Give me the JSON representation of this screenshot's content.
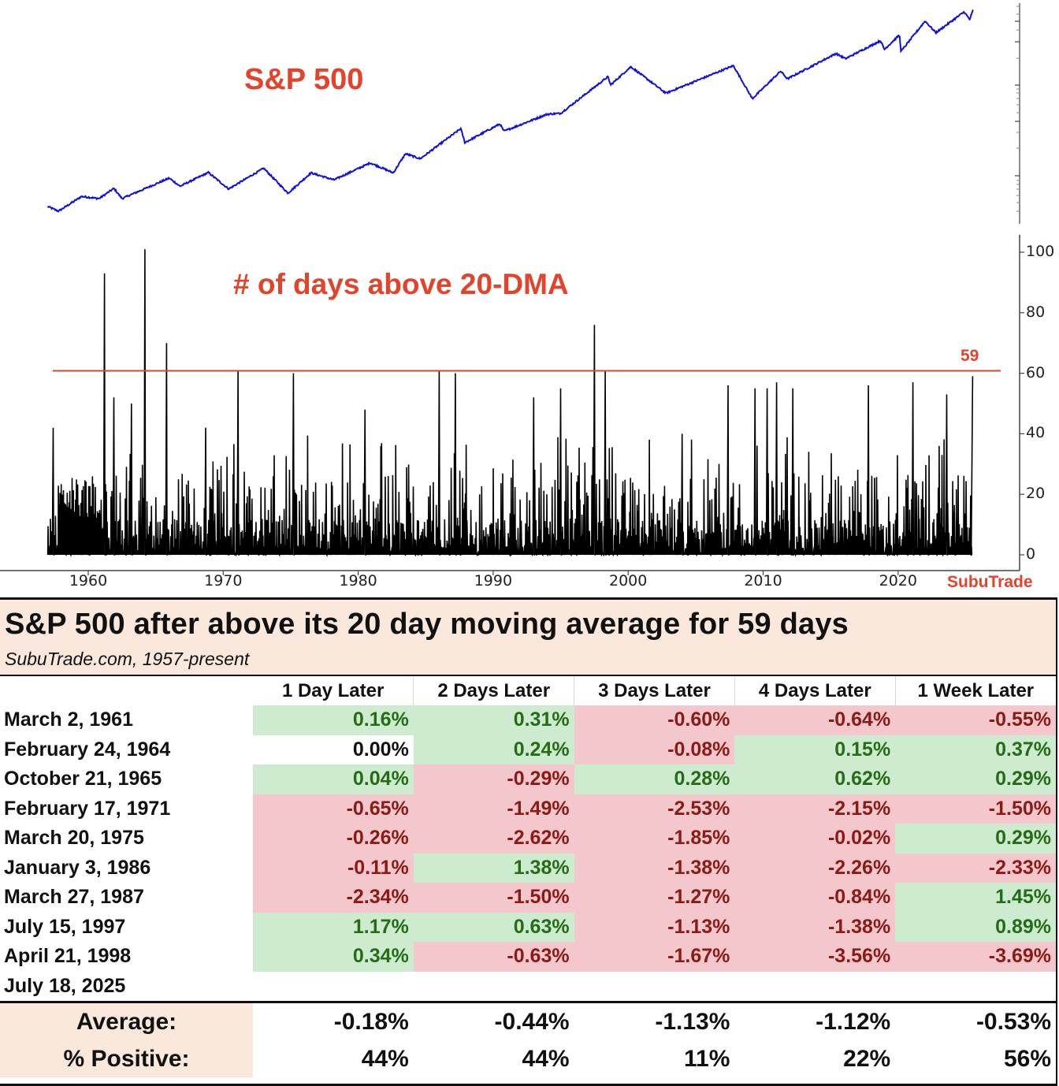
{
  "chart_data": [
    {
      "type": "line",
      "title": "S&P 500",
      "series": [
        {
          "name": "S&P 500",
          "color": "#1010d8"
        }
      ],
      "y_scale": "log",
      "x_range": [
        1957,
        2025.55
      ],
      "key_points": [
        {
          "x": 1957.0,
          "y": 45
        },
        {
          "x": 1957.8,
          "y": 40
        },
        {
          "x": 1959.5,
          "y": 58
        },
        {
          "x": 1960.8,
          "y": 55
        },
        {
          "x": 1961.9,
          "y": 71
        },
        {
          "x": 1962.5,
          "y": 55
        },
        {
          "x": 1966.0,
          "y": 92
        },
        {
          "x": 1966.8,
          "y": 75
        },
        {
          "x": 1968.9,
          "y": 106
        },
        {
          "x": 1970.4,
          "y": 70
        },
        {
          "x": 1973.0,
          "y": 118
        },
        {
          "x": 1974.8,
          "y": 63
        },
        {
          "x": 1976.5,
          "y": 105
        },
        {
          "x": 1978.2,
          "y": 88
        },
        {
          "x": 1980.9,
          "y": 135
        },
        {
          "x": 1982.6,
          "y": 105
        },
        {
          "x": 1983.5,
          "y": 170
        },
        {
          "x": 1984.6,
          "y": 150
        },
        {
          "x": 1987.6,
          "y": 320
        },
        {
          "x": 1987.9,
          "y": 225
        },
        {
          "x": 1990.5,
          "y": 360
        },
        {
          "x": 1990.8,
          "y": 300
        },
        {
          "x": 1994.0,
          "y": 460
        },
        {
          "x": 1995.0,
          "y": 470
        },
        {
          "x": 1998.5,
          "y": 1180
        },
        {
          "x": 1998.7,
          "y": 960
        },
        {
          "x": 2000.2,
          "y": 1520
        },
        {
          "x": 2002.8,
          "y": 780
        },
        {
          "x": 2007.8,
          "y": 1560
        },
        {
          "x": 2009.2,
          "y": 680
        },
        {
          "x": 2011.3,
          "y": 1360
        },
        {
          "x": 2011.8,
          "y": 1120
        },
        {
          "x": 2015.4,
          "y": 2120
        },
        {
          "x": 2016.1,
          "y": 1860
        },
        {
          "x": 2018.7,
          "y": 2930
        },
        {
          "x": 2018.98,
          "y": 2350
        },
        {
          "x": 2020.1,
          "y": 3380
        },
        {
          "x": 2020.22,
          "y": 2240
        },
        {
          "x": 2022.0,
          "y": 4800
        },
        {
          "x": 2022.8,
          "y": 3580
        },
        {
          "x": 2024.9,
          "y": 6050
        },
        {
          "x": 2025.3,
          "y": 4980
        },
        {
          "x": 2025.55,
          "y": 6300
        }
      ]
    },
    {
      "type": "line",
      "title": "# of days above 20-DMA",
      "series": [
        {
          "name": "# of days above 20-DMA",
          "color": "#000000"
        }
      ],
      "xticks": [
        "1960",
        "1970",
        "1980",
        "1990",
        "2000",
        "2010",
        "2020"
      ],
      "yticks": [
        "0",
        "20",
        "40",
        "60",
        "80",
        "100"
      ],
      "ylim": [
        0,
        102
      ],
      "x_range": [
        1957,
        2025.55
      ],
      "reference_line": {
        "value": 59,
        "label": "59",
        "color": "#e2432a"
      },
      "notable_peaks": [
        {
          "x": 1957.4,
          "y": 42
        },
        {
          "x": 1961.2,
          "y": 93
        },
        {
          "x": 1961.9,
          "y": 52
        },
        {
          "x": 1963.2,
          "y": 50
        },
        {
          "x": 1964.2,
          "y": 101
        },
        {
          "x": 1965.8,
          "y": 70
        },
        {
          "x": 1968.7,
          "y": 42
        },
        {
          "x": 1971.1,
          "y": 61
        },
        {
          "x": 1975.2,
          "y": 60
        },
        {
          "x": 1980.5,
          "y": 48
        },
        {
          "x": 1986.0,
          "y": 61
        },
        {
          "x": 1987.2,
          "y": 60
        },
        {
          "x": 1993.0,
          "y": 52
        },
        {
          "x": 1995.0,
          "y": 55
        },
        {
          "x": 1997.5,
          "y": 76
        },
        {
          "x": 1998.3,
          "y": 61
        },
        {
          "x": 2004.0,
          "y": 40
        },
        {
          "x": 2007.4,
          "y": 56
        },
        {
          "x": 2009.4,
          "y": 55
        },
        {
          "x": 2010.3,
          "y": 55
        },
        {
          "x": 2011.0,
          "y": 57
        },
        {
          "x": 2012.2,
          "y": 55
        },
        {
          "x": 2017.8,
          "y": 56
        },
        {
          "x": 2021.1,
          "y": 57
        },
        {
          "x": 2023.6,
          "y": 53
        },
        {
          "x": 2025.52,
          "y": 59
        }
      ]
    }
  ],
  "chart_text": {
    "top_title": "S&P 500",
    "bottom_title": "# of days above 20-DMA",
    "ref_label": "59",
    "brand": "SubuTrade"
  },
  "table": {
    "title": "S&P 500 after above its 20 day moving average for 59 days",
    "subtitle": "SubuTrade.com, 1957-present",
    "columns": [
      "",
      "1 Day Later",
      "2 Days Later",
      "3 Days Later",
      "4 Days Later",
      "1 Week Later"
    ],
    "rows": [
      {
        "date": "March 2, 1961",
        "values": [
          "0.16%",
          "0.31%",
          "-0.60%",
          "-0.64%",
          "-0.55%"
        ]
      },
      {
        "date": "February 24, 1964",
        "values": [
          "0.00%",
          "0.24%",
          "-0.08%",
          "0.15%",
          "0.37%"
        ]
      },
      {
        "date": "October 21, 1965",
        "values": [
          "0.04%",
          "-0.29%",
          "0.28%",
          "0.62%",
          "0.29%"
        ]
      },
      {
        "date": "February 17, 1971",
        "values": [
          "-0.65%",
          "-1.49%",
          "-2.53%",
          "-2.15%",
          "-1.50%"
        ]
      },
      {
        "date": "March 20, 1975",
        "values": [
          "-0.26%",
          "-2.62%",
          "-1.85%",
          "-0.02%",
          "0.29%"
        ]
      },
      {
        "date": "January 3, 1986",
        "values": [
          "-0.11%",
          "1.38%",
          "-1.38%",
          "-2.26%",
          "-2.33%"
        ]
      },
      {
        "date": "March 27, 1987",
        "values": [
          "-2.34%",
          "-1.50%",
          "-1.27%",
          "-0.84%",
          "1.45%"
        ]
      },
      {
        "date": "July 15, 1997",
        "values": [
          "1.17%",
          "0.63%",
          "-1.13%",
          "-1.38%",
          "0.89%"
        ]
      },
      {
        "date": "April 21, 1998",
        "values": [
          "0.34%",
          "-0.63%",
          "-1.67%",
          "-3.56%",
          "-3.69%"
        ]
      },
      {
        "date": "July 18, 2025",
        "values": [
          "",
          "",
          "",
          "",
          ""
        ]
      }
    ],
    "average": {
      "label": "Average:",
      "values": [
        "-0.18%",
        "-0.44%",
        "-1.13%",
        "-1.12%",
        "-0.53%"
      ]
    },
    "positive": {
      "label": "% Positive:",
      "values": [
        "44%",
        "44%",
        "11%",
        "22%",
        "56%"
      ]
    }
  },
  "colors": {
    "accent_red": "#e2432a",
    "line_blue": "#1010d8",
    "positive_bg": "#cdeccf",
    "negative_bg": "#f4c7cc",
    "header_bg": "#fae8dc"
  }
}
